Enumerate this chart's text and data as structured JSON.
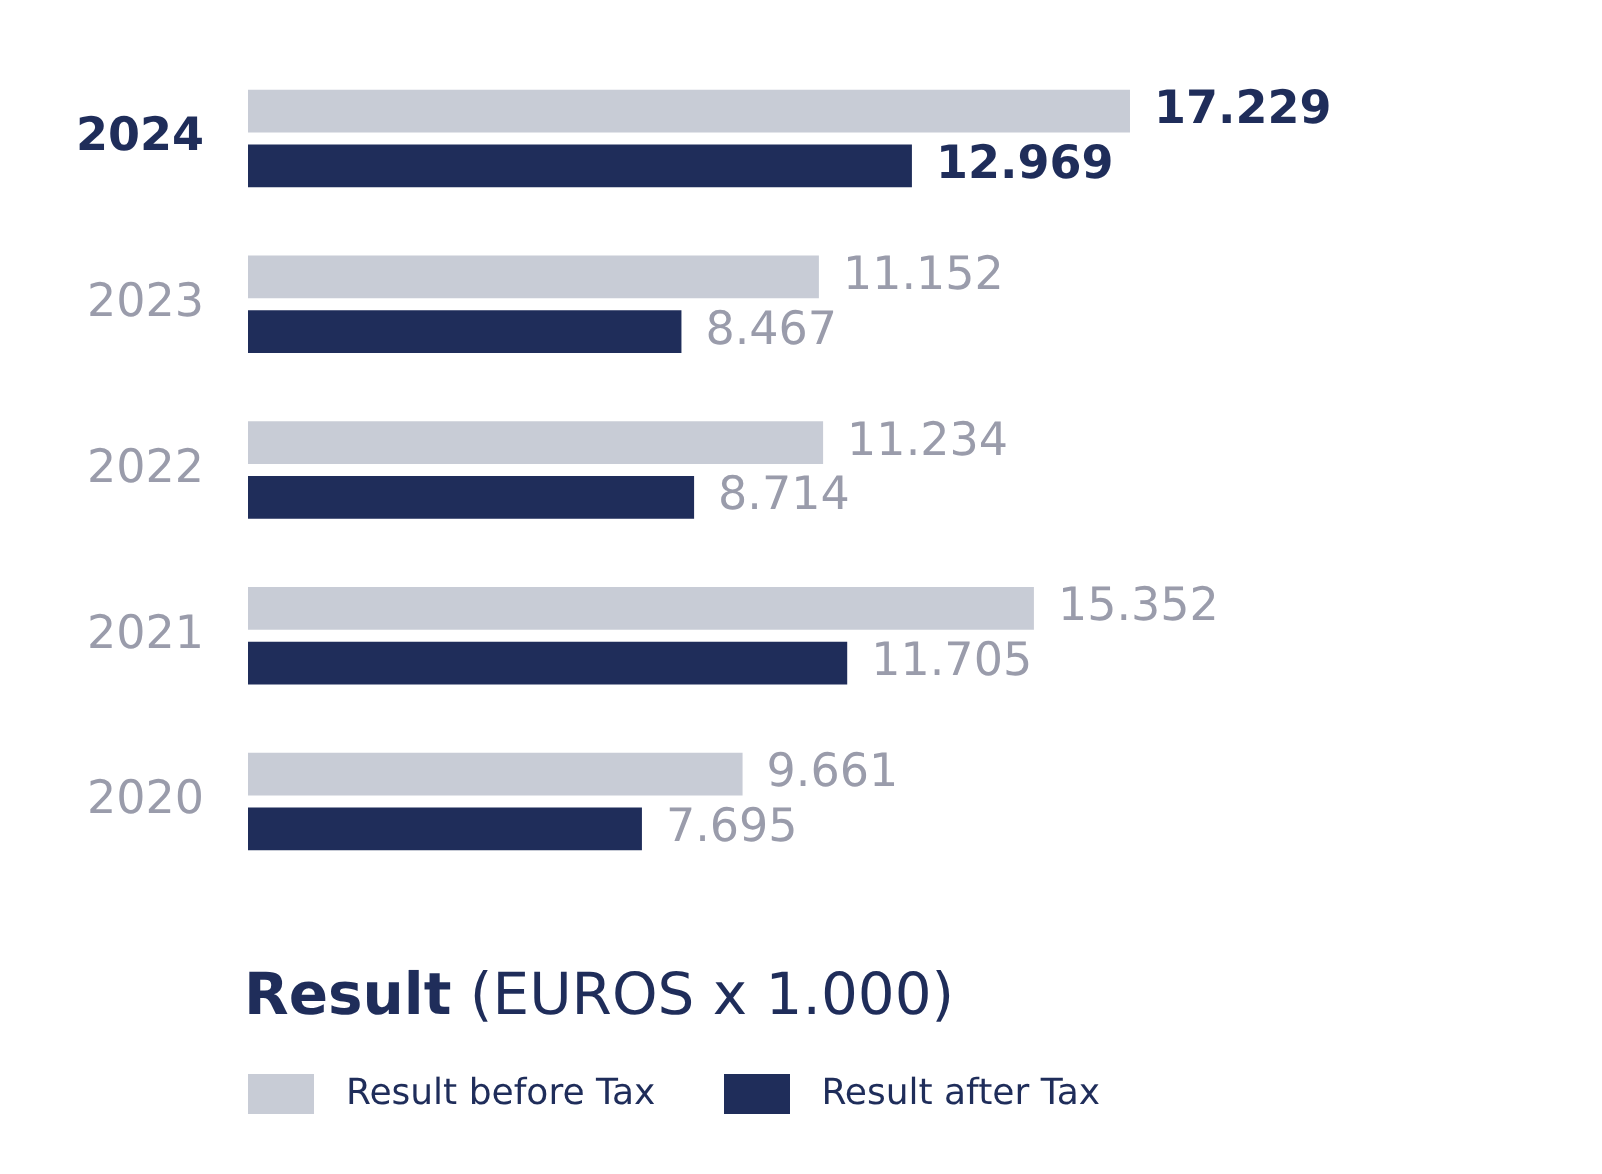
{
  "chart_data": {
    "type": "bar",
    "orientation": "horizontal",
    "title": "Result (EUROS x 1.000)",
    "categories": [
      "2024",
      "2023",
      "2022",
      "2021",
      "2020"
    ],
    "series": [
      {
        "name": "Result before Tax",
        "color": "#c8ccd6",
        "values": [
          17229,
          11152,
          11234,
          15352,
          9661
        ],
        "value_labels": [
          "17.229",
          "11.152",
          "11.234",
          "15.352",
          "9.661"
        ]
      },
      {
        "name": "Result after Tax",
        "color": "#1f2d5a",
        "values": [
          12969,
          8467,
          8714,
          11705,
          7695
        ],
        "value_labels": [
          "12.969",
          "8.467",
          "8.714",
          "11.705",
          "7.695"
        ]
      }
    ],
    "tick_labels": "y",
    "legend": "bottom"
  }
}
